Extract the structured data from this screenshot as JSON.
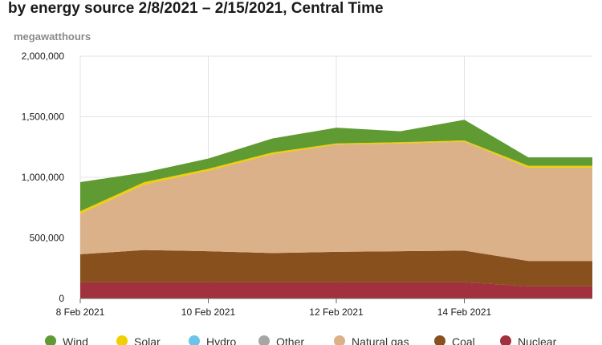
{
  "chart_data": {
    "type": "area",
    "stacked": true,
    "title": "by energy source 2/8/2021 – 2/15/2021, Central Time",
    "unit_label": "megawatthours",
    "x": [
      "8 Feb",
      "9 Feb",
      "10 Feb",
      "11 Feb",
      "12 Feb",
      "13 Feb",
      "14 Feb",
      "15 Feb",
      "16 Feb"
    ],
    "x_ticks": [
      "8 Feb 2021",
      "10 Feb 2021",
      "12 Feb 2021",
      "14 Feb 2021"
    ],
    "ylim": [
      0,
      2000000
    ],
    "y_ticks": [
      "0",
      "500,000",
      "1,000,000",
      "1,500,000",
      "2,000,000"
    ],
    "y_tick_values": [
      0,
      500000,
      1000000,
      1500000,
      2000000
    ],
    "grid": true,
    "legend_position": "bottom",
    "series": [
      {
        "name": "Nuclear",
        "color": "#a1313f",
        "values": [
          135000,
          135000,
          135000,
          135000,
          135000,
          135000,
          135000,
          100000,
          100000
        ]
      },
      {
        "name": "Coal",
        "color": "#87501d",
        "values": [
          230000,
          265000,
          255000,
          240000,
          250000,
          255000,
          260000,
          210000,
          210000
        ]
      },
      {
        "name": "Natural gas",
        "color": "#dbb18a",
        "values": [
          335000,
          540000,
          665000,
          815000,
          885000,
          890000,
          900000,
          770000,
          770000
        ]
      },
      {
        "name": "Other",
        "color": "#a6a6a6",
        "values": [
          0,
          0,
          0,
          0,
          0,
          0,
          0,
          0,
          0
        ]
      },
      {
        "name": "Hydro",
        "color": "#6cc3e8",
        "values": [
          0,
          0,
          0,
          0,
          0,
          0,
          0,
          0,
          0
        ]
      },
      {
        "name": "Solar",
        "color": "#f2cf00",
        "values": [
          20000,
          20000,
          15000,
          15000,
          10000,
          10000,
          10000,
          15000,
          15000
        ]
      },
      {
        "name": "Wind",
        "color": "#5f9a33",
        "values": [
          240000,
          80000,
          85000,
          115000,
          130000,
          90000,
          170000,
          70000,
          70000
        ]
      }
    ],
    "legend": [
      {
        "name": "Wind",
        "color": "#5f9a33"
      },
      {
        "name": "Solar",
        "color": "#f2cf00"
      },
      {
        "name": "Hydro",
        "color": "#6cc3e8"
      },
      {
        "name": "Other",
        "color": "#a6a6a6"
      },
      {
        "name": "Natural gas",
        "color": "#dbb18a"
      },
      {
        "name": "Coal",
        "color": "#87501d"
      },
      {
        "name": "Nuclear",
        "color": "#a1313f"
      }
    ]
  }
}
